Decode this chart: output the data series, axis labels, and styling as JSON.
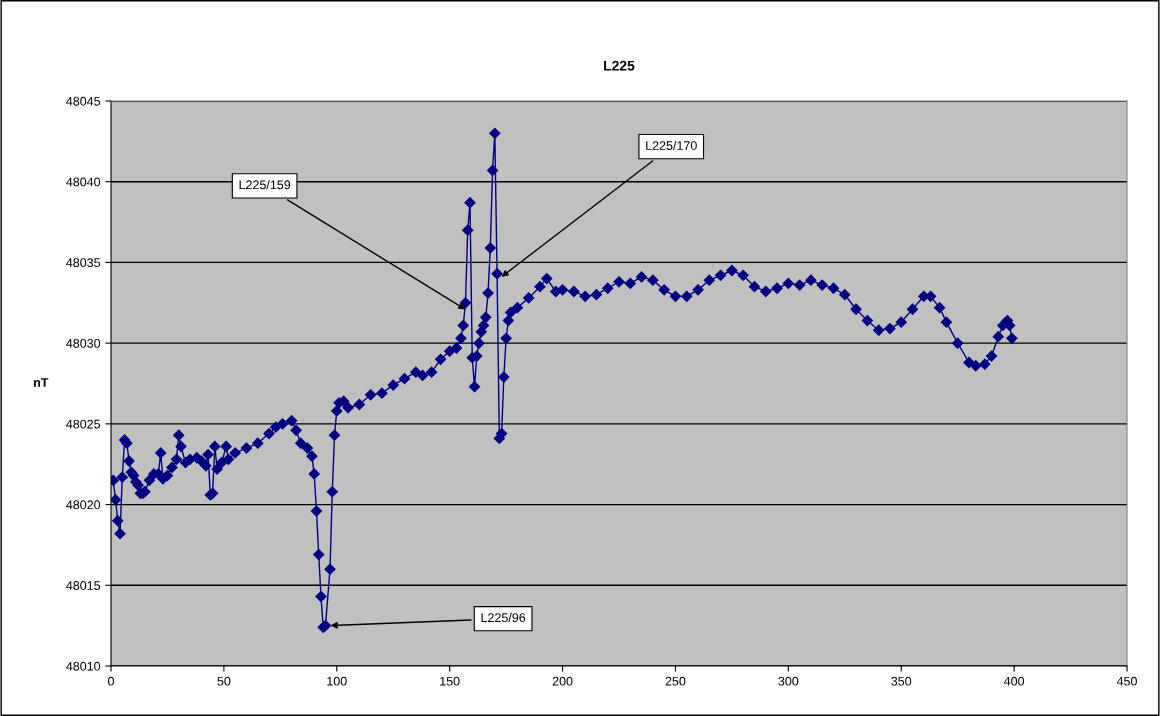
{
  "chart_data": {
    "type": "line",
    "title": "L225",
    "ylabel": "nT",
    "x": [
      1,
      2,
      3,
      4,
      5,
      6,
      7,
      8,
      9,
      10,
      11,
      12,
      13,
      14,
      15,
      17,
      19,
      21,
      22,
      23,
      25,
      27,
      29,
      30,
      31,
      33,
      35,
      38,
      40,
      42,
      43,
      44,
      45,
      46,
      47,
      49,
      51,
      52,
      55,
      60,
      65,
      70,
      73,
      76,
      80,
      82,
      84,
      87,
      89,
      90,
      91,
      92,
      93,
      94,
      95,
      97,
      98,
      99,
      100,
      101,
      103,
      105,
      110,
      115,
      120,
      125,
      130,
      135,
      138,
      142,
      146,
      150,
      153,
      155,
      156,
      157,
      158,
      159,
      160,
      161,
      162,
      163,
      164,
      165,
      166,
      167,
      168,
      169,
      170,
      171,
      172,
      173,
      174,
      175,
      176,
      177,
      180,
      185,
      190,
      193,
      197,
      200,
      205,
      210,
      215,
      220,
      225,
      230,
      235,
      240,
      245,
      250,
      255,
      260,
      265,
      270,
      275,
      280,
      285,
      290,
      295,
      300,
      305,
      310,
      315,
      320,
      325,
      330,
      335,
      340,
      345,
      350,
      355,
      360,
      363,
      367,
      370,
      375,
      380,
      383,
      387,
      390,
      393,
      395,
      397,
      398,
      399
    ],
    "series": [
      {
        "color": "#000080",
        "values": [
          48021.5,
          48020.3,
          48019,
          48018.2,
          48021.7,
          48024,
          48023.8,
          48022.7,
          48022,
          48021.8,
          48021.4,
          48021.2,
          48020.7,
          48020.7,
          48020.8,
          48021.5,
          48021.9,
          48021.9,
          48023.2,
          48021.6,
          48021.8,
          48022.3,
          48022.8,
          48024.3,
          48023.6,
          48022.6,
          48022.8,
          48022.9,
          48022.7,
          48022.4,
          48023.1,
          48020.6,
          48020.7,
          48023.6,
          48022.2,
          48022.6,
          48023.6,
          48022.8,
          48023.2,
          48023.5,
          48023.8,
          48024.4,
          48024.8,
          48025,
          48025.2,
          48024.6,
          48023.8,
          48023.5,
          48023,
          48021.9,
          48019.6,
          48016.9,
          48014.3,
          48012.4,
          48012.5,
          48016,
          48020.8,
          48024.3,
          48025.8,
          48026.3,
          48026.4,
          48026,
          48026.2,
          48026.8,
          48026.9,
          48027.4,
          48027.8,
          48028.2,
          48028,
          48028.2,
          48029,
          48029.5,
          48029.7,
          48030.3,
          48031.1,
          48032.5,
          48037,
          48038.7,
          48029.1,
          48027.3,
          48029.2,
          48030,
          48030.7,
          48031.1,
          48031.6,
          48033.1,
          48035.9,
          48040.7,
          48043,
          48034.3,
          48024.1,
          48024.4,
          48027.9,
          48030.3,
          48031.4,
          48031.9,
          48032.2,
          48032.8,
          48033.5,
          48034,
          48033.2,
          48033.3,
          48033.2,
          48032.9,
          48033,
          48033.4,
          48033.8,
          48033.7,
          48034.1,
          48033.9,
          48033.3,
          48032.9,
          48032.9,
          48033.3,
          48033.9,
          48034.2,
          48034.5,
          48034.2,
          48033.5,
          48033.2,
          48033.4,
          48033.7,
          48033.6,
          48033.9,
          48033.6,
          48033.4,
          48033,
          48032.1,
          48031.4,
          48030.8,
          48030.9,
          48031.3,
          48032.1,
          48032.9,
          48032.9,
          48032.2,
          48031.3,
          48030,
          48028.8,
          48028.6,
          48028.7,
          48029.2,
          48030.4,
          48031.1,
          48031.4,
          48031.1,
          48030.3
        ]
      }
    ],
    "xlim": [
      0,
      450
    ],
    "xticks": [
      0,
      50,
      100,
      150,
      200,
      250,
      300,
      350,
      400,
      450
    ],
    "ylim": [
      48010,
      48045
    ],
    "yticks": [
      48010,
      48015,
      48020,
      48025,
      48030,
      48035,
      48040,
      48045
    ],
    "grid": "y",
    "marker": "diamond",
    "line_style": "solid",
    "legend": false,
    "annotations": [
      {
        "text": "L225/159",
        "x": 158,
        "y": 48032
      },
      {
        "text": "L225/170",
        "x": 172,
        "y": 48034
      },
      {
        "text": "L225/96",
        "x": 96,
        "y": 48012.5
      }
    ]
  }
}
